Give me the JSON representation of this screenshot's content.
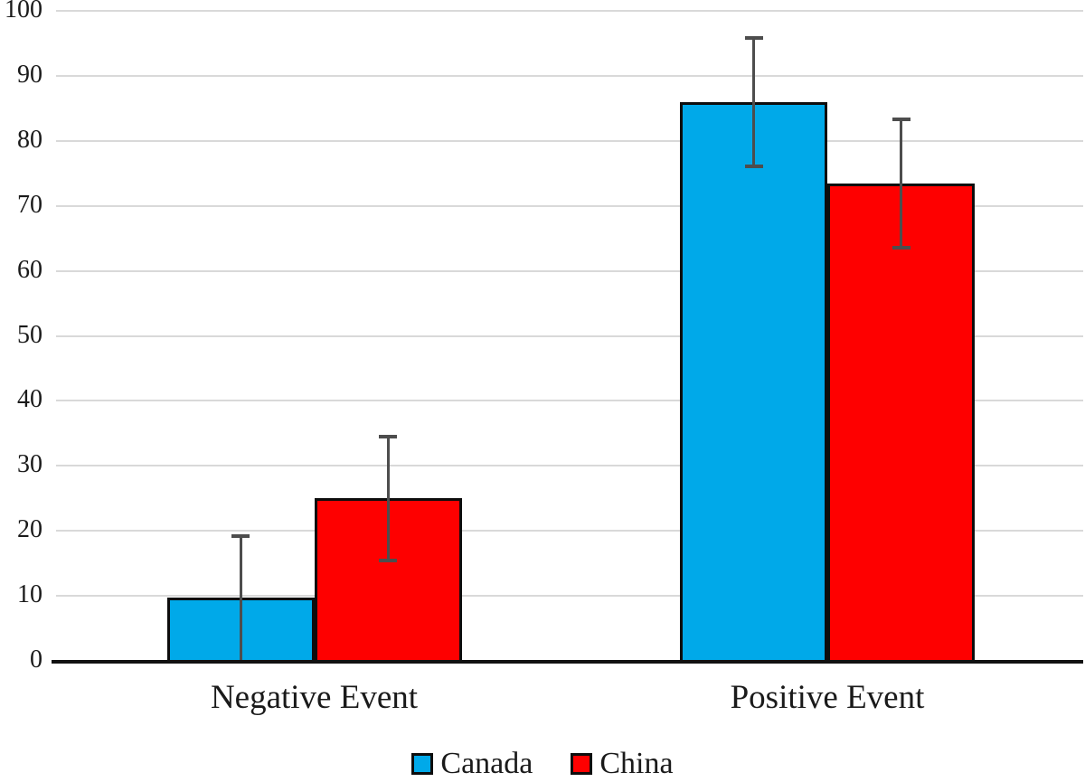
{
  "chart_data": {
    "type": "bar",
    "title": "",
    "xlabel": "",
    "ylabel": "",
    "categories": [
      "Negative Event",
      "Positive Event"
    ],
    "series": [
      {
        "name": "Canada",
        "color": "#00A9E9",
        "values": [
          9.7,
          86.0
        ],
        "errors": [
          9.7,
          9.9
        ]
      },
      {
        "name": "China",
        "color": "#FE0000",
        "values": [
          25.0,
          73.5
        ],
        "errors": [
          9.6,
          10.0
        ]
      }
    ],
    "ylim": [
      0,
      100
    ],
    "yticks": [
      0,
      10,
      20,
      30,
      40,
      50,
      60,
      70,
      80,
      90,
      100
    ],
    "grid": "horizontal",
    "legend_position": "bottom",
    "colors": {
      "gridline": "#d9d9d9",
      "axis": "#111111",
      "error_bar": "#4d4d4d",
      "bar_border": "#0d0d0d",
      "text": "#1a1a1a",
      "background": "#ffffff"
    }
  }
}
